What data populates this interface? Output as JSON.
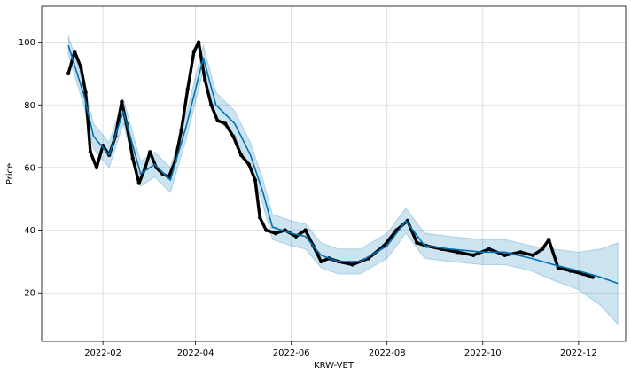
{
  "chart_data": {
    "type": "line",
    "title": "",
    "xlabel": "KRW-VET",
    "ylabel": "Price",
    "xlim": [
      "2021-12-24",
      "2022-12-31"
    ],
    "ylim": [
      4.5,
      111.5
    ],
    "grid": true,
    "x_ticks": [
      "2022-02-01",
      "2022-04-01",
      "2022-06-01",
      "2022-08-01",
      "2022-10-01",
      "2022-12-01"
    ],
    "x_tick_labels": [
      "2022-02",
      "2022-04",
      "2022-06",
      "2022-08",
      "2022-10",
      "2022-12"
    ],
    "y_ticks": [
      20,
      40,
      60,
      80,
      100
    ],
    "y_tick_labels": [
      "20",
      "40",
      "60",
      "80",
      "100"
    ],
    "colors": {
      "forecast_line": "#0072b2",
      "uncertainty_band": "#0072b2",
      "actual_points": "#000000",
      "grid": "#d9d9d9"
    },
    "series": [
      {
        "role": "observed",
        "x": [
          "2022-01-10",
          "2022-01-14",
          "2022-01-18",
          "2022-01-21",
          "2022-01-24",
          "2022-01-28",
          "2022-02-01",
          "2022-02-05",
          "2022-02-09",
          "2022-02-13",
          "2022-02-16",
          "2022-02-20",
          "2022-02-24",
          "2022-02-28",
          "2022-03-03",
          "2022-03-07",
          "2022-03-11",
          "2022-03-15",
          "2022-03-19",
          "2022-03-23",
          "2022-03-27",
          "2022-03-31",
          "2022-04-03",
          "2022-04-07",
          "2022-04-11",
          "2022-04-15",
          "2022-04-20",
          "2022-04-25",
          "2022-04-30",
          "2022-05-05",
          "2022-05-09",
          "2022-05-12",
          "2022-05-16",
          "2022-05-22",
          "2022-05-28",
          "2022-06-04",
          "2022-06-10",
          "2022-06-15",
          "2022-06-20",
          "2022-06-25",
          "2022-07-01",
          "2022-07-10",
          "2022-07-20",
          "2022-07-30",
          "2022-08-07",
          "2022-08-14",
          "2022-08-20",
          "2022-08-26",
          "2022-09-05",
          "2022-09-15",
          "2022-09-25",
          "2022-10-05",
          "2022-10-15",
          "2022-10-25",
          "2022-11-02",
          "2022-11-08",
          "2022-11-12",
          "2022-11-18",
          "2022-11-26",
          "2022-12-04",
          "2022-12-10"
        ],
        "y": [
          90,
          97,
          92,
          84,
          65,
          60,
          67,
          64,
          70,
          81,
          74,
          63,
          55,
          60,
          65,
          60,
          58,
          57,
          62,
          72,
          85,
          97,
          100,
          88,
          80,
          75,
          74,
          70,
          64,
          61,
          56,
          44,
          40,
          39,
          40,
          38,
          40,
          35,
          30,
          31,
          30,
          29,
          31,
          35,
          40,
          43,
          36,
          35,
          34,
          33,
          32,
          34,
          32,
          33,
          32,
          34,
          37,
          28,
          27,
          26,
          25
        ]
      },
      {
        "role": "forecast",
        "x": [
          "2022-01-10",
          "2022-01-20",
          "2022-01-26",
          "2022-02-05",
          "2022-02-14",
          "2022-02-25",
          "2022-03-06",
          "2022-03-16",
          "2022-03-26",
          "2022-04-06",
          "2022-04-14",
          "2022-04-26",
          "2022-05-06",
          "2022-05-14",
          "2022-05-20",
          "2022-06-01",
          "2022-06-10",
          "2022-06-20",
          "2022-07-01",
          "2022-07-15",
          "2022-08-01",
          "2022-08-13",
          "2022-08-25",
          "2022-09-10",
          "2022-10-01",
          "2022-10-15",
          "2022-11-01",
          "2022-11-15",
          "2022-12-01",
          "2022-12-15",
          "2022-12-26"
        ],
        "y": [
          99,
          83,
          70,
          64,
          78,
          58,
          61,
          56,
          73,
          95,
          80,
          74,
          64,
          52,
          41,
          39,
          38,
          32,
          30,
          30,
          35,
          43,
          35,
          34,
          33,
          33,
          31,
          29,
          27,
          25,
          23
        ],
        "band_width": [
          3,
          3.5,
          4,
          4,
          4,
          4,
          4,
          4,
          4,
          4,
          4,
          4,
          4,
          4,
          4,
          4,
          4,
          4,
          4,
          4,
          4,
          4,
          4,
          4,
          4,
          4,
          4,
          5,
          6,
          9,
          13
        ]
      }
    ]
  }
}
